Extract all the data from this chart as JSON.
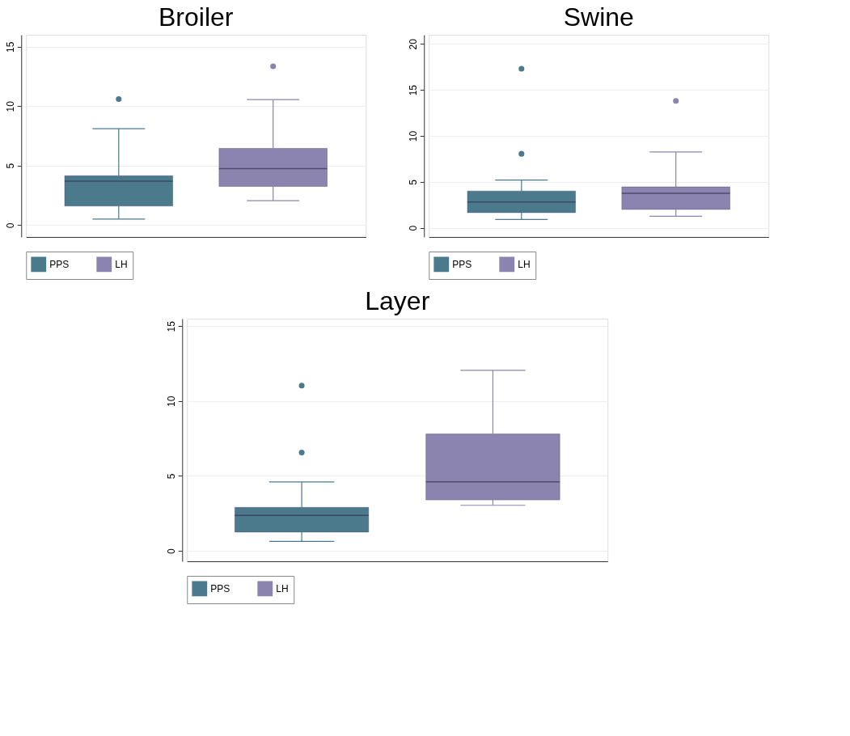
{
  "chart_data": [
    {
      "type": "box",
      "title": "Broiler",
      "categories": [
        null
      ],
      "ylim": [
        -1,
        16
      ],
      "yticks": [
        0,
        5,
        10,
        15
      ],
      "grid": "y",
      "legend": "bottom",
      "tick_labels": "y",
      "series": [
        {
          "name": "PPS",
          "color": "#4a7a8c",
          "boxes": [
            {
              "low": 0.5,
              "q1": 1.6,
              "median": 3.7,
              "q3": 4.15,
              "high": 8.1,
              "outliers": [
                10.6
              ]
            }
          ]
        },
        {
          "name": "LH",
          "color": "#8b84b0",
          "boxes": [
            {
              "low": 2.05,
              "q1": 3.25,
              "median": 4.75,
              "q3": 6.45,
              "high": 10.55,
              "outliers": [
                13.35
              ]
            }
          ]
        }
      ]
    },
    {
      "type": "box",
      "title": "Swine",
      "categories": [
        null
      ],
      "ylim": [
        -1,
        21
      ],
      "yticks": [
        0,
        5,
        10,
        15,
        20
      ],
      "grid": "y",
      "legend": "bottom",
      "tick_labels": "y",
      "series": [
        {
          "name": "PPS",
          "color": "#4a7a8c",
          "boxes": [
            {
              "low": 0.9,
              "q1": 1.65,
              "median": 2.8,
              "q3": 4.0,
              "high": 5.2,
              "outliers": [
                8.05,
                17.3
              ]
            }
          ]
        },
        {
          "name": "LH",
          "color": "#8b84b0",
          "boxes": [
            {
              "low": 1.25,
              "q1": 2.0,
              "median": 3.75,
              "q3": 4.45,
              "high": 8.25,
              "outliers": [
                13.8
              ]
            }
          ]
        }
      ]
    },
    {
      "type": "box",
      "title": "Layer",
      "categories": [
        null
      ],
      "ylim": [
        -0.7,
        15.5
      ],
      "yticks": [
        0,
        5,
        10,
        15
      ],
      "grid": "y",
      "legend": "bottom",
      "tick_labels": "y",
      "series": [
        {
          "name": "PPS",
          "color": "#4a7a8c",
          "boxes": [
            {
              "low": 0.63,
              "q1": 1.25,
              "median": 2.37,
              "q3": 2.9,
              "high": 4.6,
              "outliers": [
                6.56,
                11.03
              ]
            }
          ]
        },
        {
          "name": "LH",
          "color": "#8b84b0",
          "boxes": [
            {
              "low": 3.04,
              "q1": 3.4,
              "median": 4.6,
              "q3": 7.8,
              "high": 12.05
            }
          ]
        }
      ]
    }
  ]
}
